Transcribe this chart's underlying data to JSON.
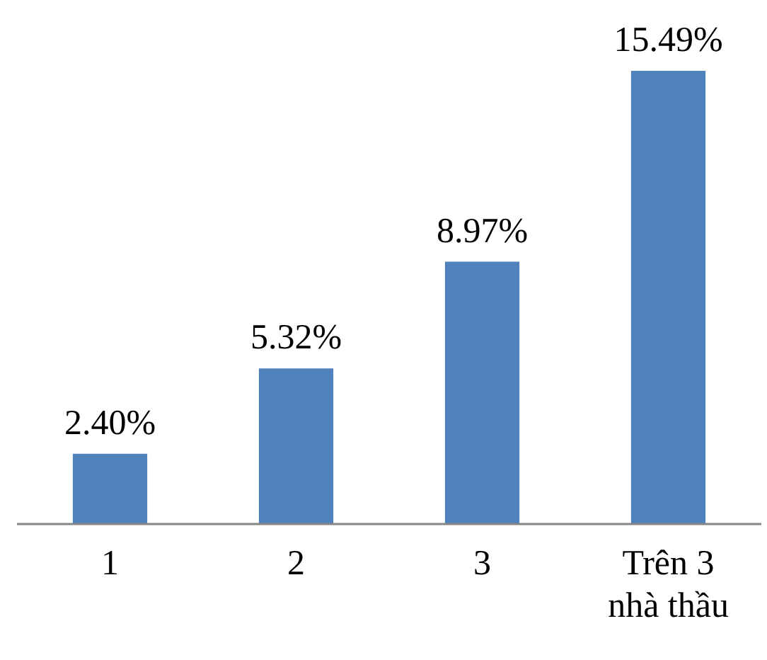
{
  "chart_data": {
    "type": "bar",
    "categories": [
      "1",
      "2",
      "3",
      "Trên 3 nhà thầu"
    ],
    "values": [
      2.4,
      5.32,
      8.97,
      15.49
    ],
    "value_labels": [
      "2.40%",
      "5.32%",
      "8.97%",
      "15.49%"
    ],
    "color": "#4f81bd",
    "grid": false,
    "legend": false
  }
}
